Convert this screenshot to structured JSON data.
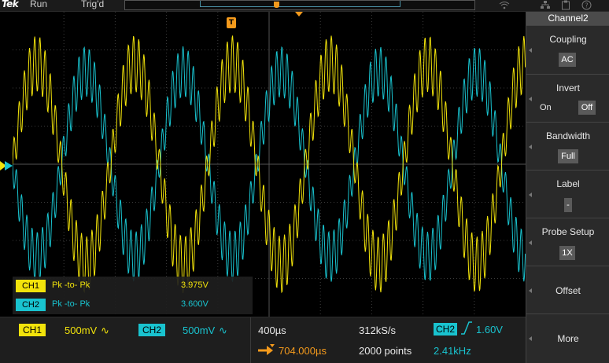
{
  "topbar": {
    "logo": "Tek",
    "run_state": "Run",
    "trigger_state": "Trig'd",
    "icons": [
      "wifi-icon",
      "network-icon",
      "clipboard-icon",
      "help-icon"
    ]
  },
  "graticule": {
    "trigger_position_label": "T",
    "ground_marker_label": "1"
  },
  "measurements": [
    {
      "channel": "CH1",
      "name": "Pk -to- Pk",
      "value": "3.975V",
      "color": "#f2e30b"
    },
    {
      "channel": "CH2",
      "name": "Pk -to- Pk",
      "value": "3.600V",
      "color": "#19c3cf"
    }
  ],
  "bottom": {
    "ch1": {
      "label": "CH1",
      "scale": "500mV",
      "coupling_icon": "∿",
      "color": "#f2e30b"
    },
    "ch2": {
      "label": "CH2",
      "scale": "500mV",
      "coupling_icon": "∿",
      "color": "#19c3cf"
    },
    "horizontal": {
      "time_per_div": "400µs",
      "sample_rate": "312kS/s",
      "delay": "704.000µs",
      "record_length": "2000 points"
    },
    "trigger": {
      "source": "CH2",
      "slope_icon": "rising-edge-icon",
      "level": "1.60V",
      "frequency": "2.41kHz"
    }
  },
  "side_menu": {
    "title": "Channel2",
    "items": [
      {
        "label": "Coupling",
        "value": "AC"
      },
      {
        "label": "Invert",
        "options": [
          "On",
          "Off"
        ],
        "selected": "Off"
      },
      {
        "label": "Bandwidth",
        "value": "Full"
      },
      {
        "label": "Label",
        "value": "-"
      },
      {
        "label": "Probe Setup",
        "value": "1X"
      },
      {
        "label": "Offset"
      },
      {
        "label": "More"
      }
    ]
  },
  "colors": {
    "ch1": "#f2e30b",
    "ch2": "#19c3cf",
    "trigger": "#f49a1c",
    "grid": "#3c3c3c"
  }
}
